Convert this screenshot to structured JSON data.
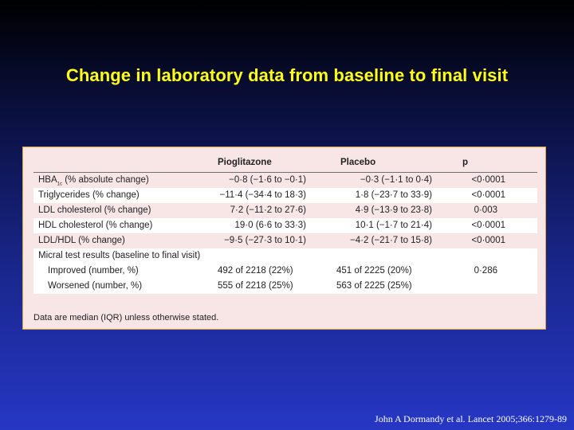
{
  "slide": {
    "title": "Change in laboratory data from baseline to final visit",
    "citation": "John A Dormandy et al. Lancet 2005;366:1279-89"
  },
  "table": {
    "headers": {
      "pioglitazone": "Pioglitazone",
      "placebo": "Placebo",
      "p": "p"
    },
    "rows": [
      {
        "label": "HBA",
        "label_sub": "1c",
        "label_rest": " (% absolute change)",
        "pioglitazone": "−0·8 (−1·6 to −0·1)",
        "placebo": "−0·3 (−1·1 to 0·4)",
        "p": "<0·0001"
      },
      {
        "label": "Triglycerides (% change)",
        "pioglitazone": "−11·4 (−34·4 to 18·3)",
        "placebo": "1·8 (−23·7 to 33·9)",
        "p": "<0·0001"
      },
      {
        "label": "LDL cholesterol (% change)",
        "pioglitazone": "7·2 (−11·2 to 27·6)",
        "placebo": "4·9 (−13·9 to 23·8)",
        "p": "0·003"
      },
      {
        "label": "HDL cholesterol (% change)",
        "pioglitazone": "19·0 (6·6 to 33·3)",
        "placebo": "10·1 (−1·7 to 21·4)",
        "p": "<0·0001"
      },
      {
        "label": "LDL/HDL (% change)",
        "pioglitazone": "−9·5 (−27·3 to 10·1)",
        "placebo": "−4·2 (−21·7 to 15·8)",
        "p": "<0·0001"
      }
    ],
    "micral": {
      "label": "Micral test results (baseline to final visit)",
      "improved": {
        "label": "Improved (number, %)",
        "pioglitazone": "492 of 2218 (22%)",
        "placebo": "451 of 2225 (20%)",
        "p": "0·286"
      },
      "worsened": {
        "label": "Worsened (number, %)",
        "pioglitazone": "555 of 2218 (25%)",
        "placebo": "563 of 2225 (25%)"
      }
    },
    "footnote": "Data are median (IQR) unless otherwise stated."
  }
}
